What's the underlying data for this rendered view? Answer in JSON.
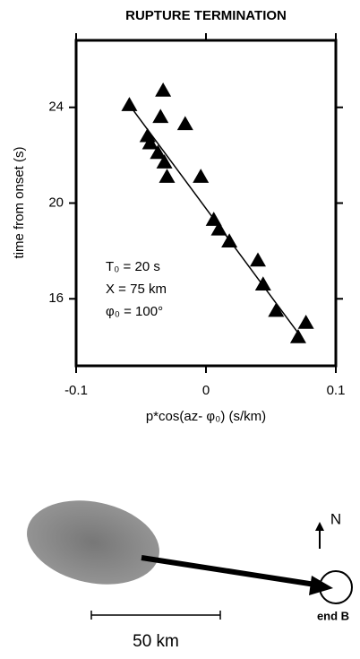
{
  "chart_data": {
    "type": "scatter",
    "title": "RUPTURE TERMINATION",
    "x_label": "p*cos(az- φ₀) (s/km)",
    "y_label": "time from onset (s)",
    "x": [
      -0.059,
      -0.033,
      -0.035,
      -0.016,
      -0.045,
      -0.043,
      -0.037,
      -0.032,
      -0.03,
      -0.004,
      0.006,
      0.01,
      0.018,
      0.04,
      0.044,
      0.054,
      0.071,
      0.077
    ],
    "values": [
      24.1,
      24.7,
      23.6,
      23.3,
      22.8,
      22.5,
      22.1,
      21.7,
      21.1,
      21.1,
      19.3,
      18.9,
      18.4,
      17.6,
      16.6,
      15.5,
      14.4,
      15.0
    ],
    "color": "#000000",
    "fit_line": {
      "x": [
        -0.059,
        0.074
      ],
      "y": [
        24.1,
        14.35
      ]
    },
    "xlim": [
      -0.1,
      0.1
    ],
    "xticks": [
      -0.1,
      0,
      0.1
    ],
    "ylim": [
      13.2,
      26.8
    ],
    "yticks": [
      16,
      20,
      24
    ],
    "annotations": [
      "T₀ = 20 s",
      "X = 75 km",
      "φ₀ = 100°"
    ]
  },
  "map": {
    "north_label": "N",
    "end_label": "end B",
    "scale_label": "50 km"
  }
}
